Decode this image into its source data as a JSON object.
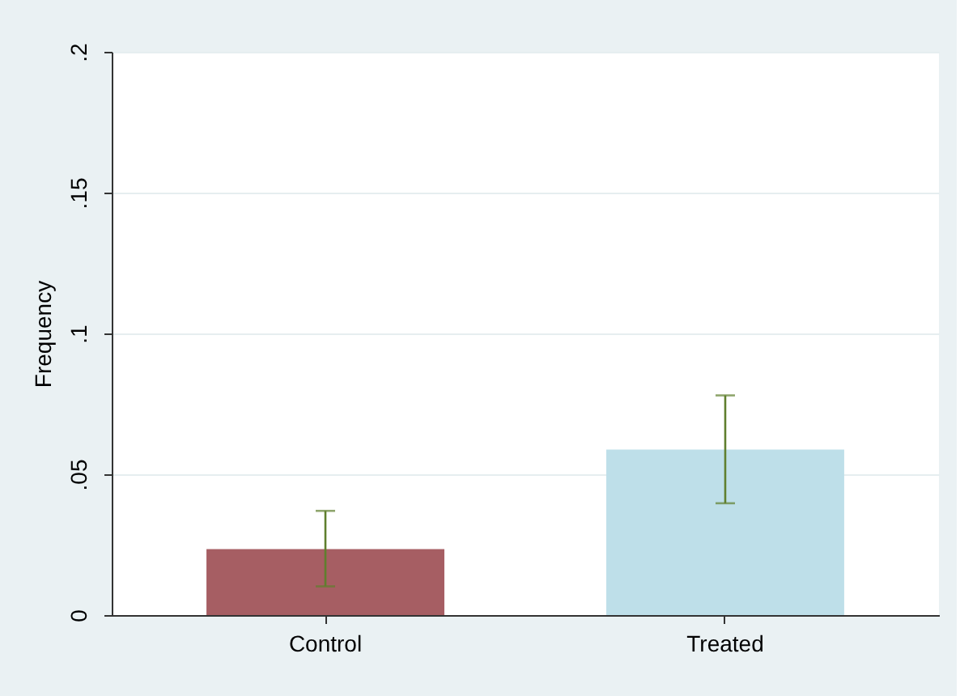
{
  "chart_data": {
    "type": "bar",
    "ylabel": "Frequency",
    "categories": [
      "Control",
      "Treated"
    ],
    "values": [
      0.0234,
      0.0588
    ],
    "colors": [
      "#a65e63",
      "#bedfe9"
    ],
    "errors": [
      [
        0.0102,
        0.037
      ],
      [
        0.0397,
        0.078
      ]
    ],
    "ylim": [
      0,
      0.2
    ],
    "yticks": [
      0,
      {
        "value": 0.05,
        "label": ".05"
      },
      {
        "value": 0.1,
        "label": ".1"
      },
      {
        "value": 0.15,
        "label": ".15"
      },
      {
        "value": 0.2,
        "label": ".2"
      }
    ],
    "grid": "y"
  }
}
